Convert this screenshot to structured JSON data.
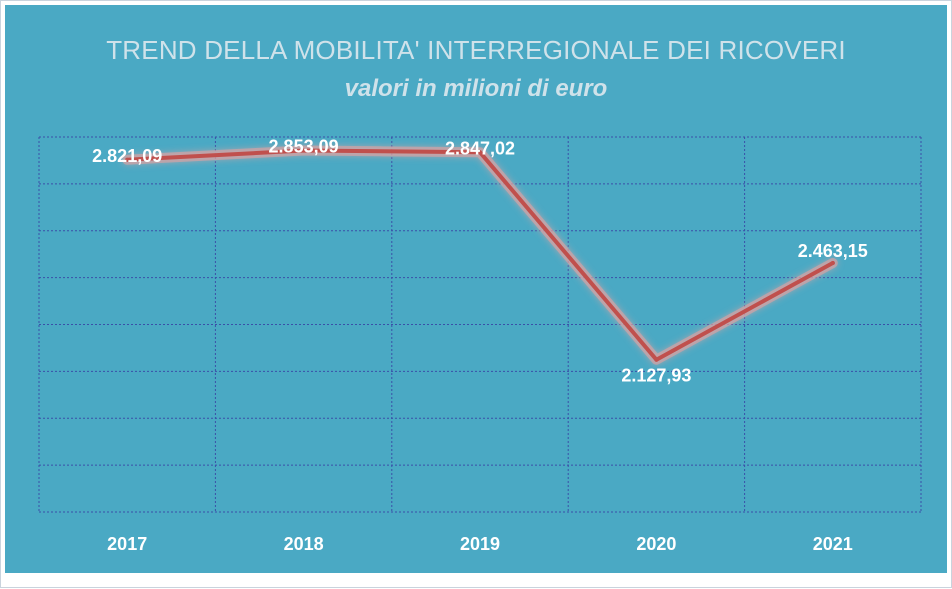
{
  "chart_data": {
    "type": "line",
    "title": "TREND DELLA MOBILITA' INTERREGIONALE DEI RICOVERI",
    "subtitle": "valori in milioni di euro",
    "categories": [
      "2017",
      "2018",
      "2019",
      "2020",
      "2021"
    ],
    "series": [
      {
        "values": [
          2821.09,
          2853.09,
          2847.02,
          2127.93,
          2463.15
        ],
        "labels": [
          "2.821,09",
          "2.853,09",
          "2.847,02",
          "2.127,93",
          "2.463,15"
        ]
      }
    ],
    "ylim": [
      1600,
      2900
    ],
    "grid": true,
    "colors": {
      "background": "#4aa9c4",
      "line": "#c0504d",
      "grid": "#3a4fa8",
      "text": "#ffffff",
      "title": "#cfe2ea"
    }
  }
}
